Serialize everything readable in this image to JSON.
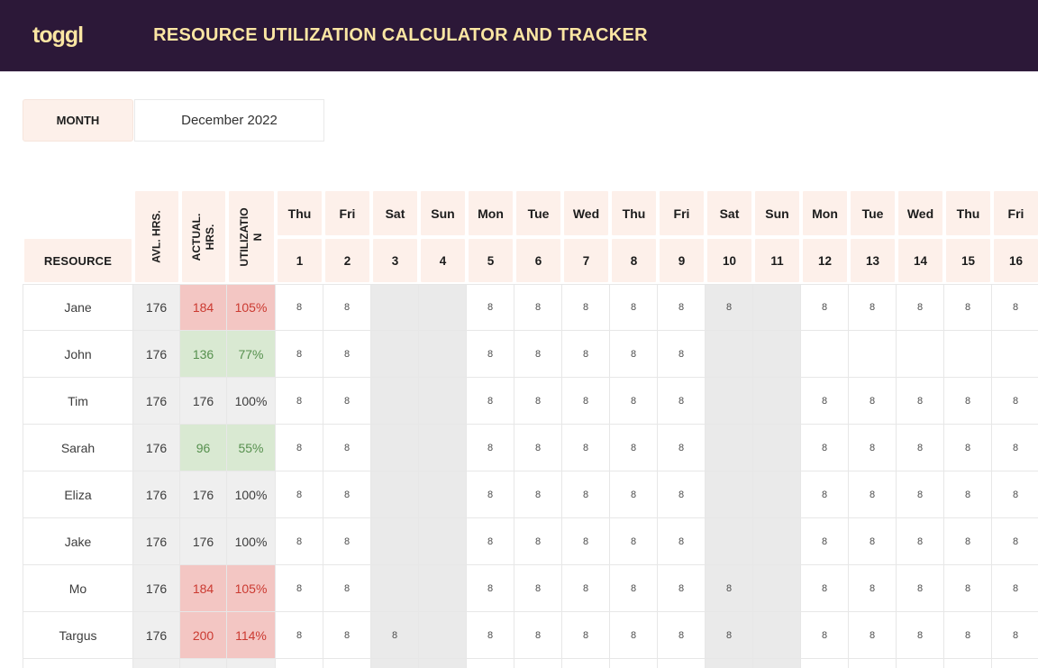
{
  "header": {
    "logo": "toggl",
    "title": "RESOURCE UTILIZATION CALCULATOR AND TRACKER"
  },
  "month": {
    "label": "MONTH",
    "value": "December 2022"
  },
  "table": {
    "resource_label": "RESOURCE",
    "stat_columns": [
      "AVL. HRS.",
      "ACTUAL. HRS.",
      "UTILIZATION"
    ],
    "days": [
      {
        "name": "Thu",
        "num": 1,
        "weekend": false
      },
      {
        "name": "Fri",
        "num": 2,
        "weekend": false
      },
      {
        "name": "Sat",
        "num": 3,
        "weekend": true
      },
      {
        "name": "Sun",
        "num": 4,
        "weekend": true
      },
      {
        "name": "Mon",
        "num": 5,
        "weekend": false
      },
      {
        "name": "Tue",
        "num": 6,
        "weekend": false
      },
      {
        "name": "Wed",
        "num": 7,
        "weekend": false
      },
      {
        "name": "Thu",
        "num": 8,
        "weekend": false
      },
      {
        "name": "Fri",
        "num": 9,
        "weekend": false
      },
      {
        "name": "Sat",
        "num": 10,
        "weekend": true
      },
      {
        "name": "Sun",
        "num": 11,
        "weekend": true
      },
      {
        "name": "Mon",
        "num": 12,
        "weekend": false
      },
      {
        "name": "Tue",
        "num": 13,
        "weekend": false
      },
      {
        "name": "Wed",
        "num": 14,
        "weekend": false
      },
      {
        "name": "Thu",
        "num": 15,
        "weekend": false
      },
      {
        "name": "Fri",
        "num": 16,
        "weekend": false
      }
    ],
    "rows": [
      {
        "name": "Jane",
        "avl": 176,
        "actual": 184,
        "util": "105%",
        "status": "over",
        "hours": [
          8,
          8,
          null,
          null,
          8,
          8,
          8,
          8,
          8,
          8,
          null,
          8,
          8,
          8,
          8,
          8
        ]
      },
      {
        "name": "John",
        "avl": 176,
        "actual": 136,
        "util": "77%",
        "status": "under",
        "hours": [
          8,
          8,
          null,
          null,
          8,
          8,
          8,
          8,
          8,
          null,
          null,
          null,
          null,
          null,
          null,
          null
        ]
      },
      {
        "name": "Tim",
        "avl": 176,
        "actual": 176,
        "util": "100%",
        "status": "full",
        "hours": [
          8,
          8,
          null,
          null,
          8,
          8,
          8,
          8,
          8,
          null,
          null,
          8,
          8,
          8,
          8,
          8
        ]
      },
      {
        "name": "Sarah",
        "avl": 176,
        "actual": 96,
        "util": "55%",
        "status": "under",
        "hours": [
          8,
          8,
          null,
          null,
          8,
          8,
          8,
          8,
          8,
          null,
          null,
          8,
          8,
          8,
          8,
          8
        ]
      },
      {
        "name": "Eliza",
        "avl": 176,
        "actual": 176,
        "util": "100%",
        "status": "full",
        "hours": [
          8,
          8,
          null,
          null,
          8,
          8,
          8,
          8,
          8,
          null,
          null,
          8,
          8,
          8,
          8,
          8
        ]
      },
      {
        "name": "Jake",
        "avl": 176,
        "actual": 176,
        "util": "100%",
        "status": "full",
        "hours": [
          8,
          8,
          null,
          null,
          8,
          8,
          8,
          8,
          8,
          null,
          null,
          8,
          8,
          8,
          8,
          8
        ]
      },
      {
        "name": "Mo",
        "avl": 176,
        "actual": 184,
        "util": "105%",
        "status": "over",
        "hours": [
          8,
          8,
          null,
          null,
          8,
          8,
          8,
          8,
          8,
          8,
          null,
          8,
          8,
          8,
          8,
          8
        ]
      },
      {
        "name": "Targus",
        "avl": 176,
        "actual": 200,
        "util": "114%",
        "status": "over",
        "hours": [
          8,
          8,
          8,
          null,
          8,
          8,
          8,
          8,
          8,
          8,
          null,
          8,
          8,
          8,
          8,
          8
        ]
      }
    ]
  },
  "colors": {
    "purple": "#2c1838",
    "gold": "#fbe6a3",
    "header_cell_pink": "#fdf0ea",
    "column_gray": "#efefef",
    "weekend_gray": "#eaeaea",
    "grid_border": "#e7e7e7",
    "over_bg": "#f3c6c3",
    "over_text": "#cb3a31",
    "under_bg": "#d9e9d2",
    "under_text": "#56904e",
    "full_bg": "#efefef"
  }
}
